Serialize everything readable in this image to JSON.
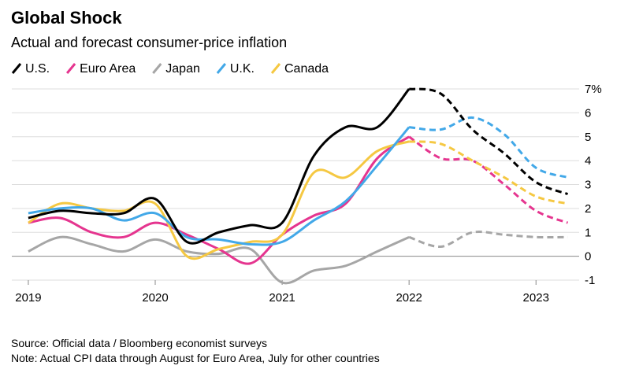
{
  "chart_data": {
    "type": "line",
    "title": "Global Shock",
    "subtitle": "Actual and forecast consumer-price inflation",
    "source": "Source: Official data / Bloomberg economist surveys",
    "note": "Note: Actual CPI data through August for Euro Area, July for other countries",
    "x": [
      2019.0,
      2019.25,
      2019.5,
      2019.75,
      2020.0,
      2020.25,
      2020.5,
      2020.75,
      2021.0,
      2021.25,
      2021.5,
      2021.75,
      2022.0,
      2022.25,
      2022.5,
      2022.75,
      2023.0,
      2023.25
    ],
    "xlim": [
      2018.87,
      2023.34
    ],
    "xticks": [
      2019,
      2020,
      2021,
      2022,
      2023
    ],
    "ylim": [
      -1,
      7
    ],
    "yticks": [
      -1,
      0,
      1,
      2,
      3,
      4,
      5,
      6,
      {
        "value": 7,
        "label": "7%"
      }
    ],
    "grid": true,
    "series": [
      {
        "name": "U.S.",
        "color": "#000000",
        "values": [
          1.6,
          1.9,
          1.8,
          1.8,
          2.4,
          0.6,
          1.0,
          1.3,
          1.4,
          4.2,
          5.4,
          5.4,
          7.0,
          null,
          null,
          null,
          null,
          null
        ],
        "forecast": [
          null,
          null,
          null,
          null,
          null,
          null,
          null,
          null,
          null,
          null,
          null,
          null,
          7.0,
          6.8,
          5.3,
          4.3,
          3.1,
          2.6
        ]
      },
      {
        "name": "Euro Area",
        "color": "#e5358f",
        "values": [
          1.4,
          1.6,
          1.0,
          0.8,
          1.4,
          0.9,
          0.3,
          -0.3,
          0.9,
          1.7,
          2.2,
          4.1,
          5.0,
          null,
          null,
          null,
          null,
          null
        ],
        "forecast": [
          null,
          null,
          null,
          null,
          null,
          null,
          null,
          null,
          null,
          null,
          null,
          null,
          5.0,
          4.1,
          4.0,
          3.0,
          1.9,
          1.4
        ]
      },
      {
        "name": "Japan",
        "color": "#a6a6a6",
        "values": [
          0.2,
          0.8,
          0.5,
          0.2,
          0.7,
          0.2,
          0.1,
          0.3,
          -1.1,
          -0.6,
          -0.4,
          0.2,
          0.8,
          null,
          null,
          null,
          null,
          null
        ],
        "forecast": [
          null,
          null,
          null,
          null,
          null,
          null,
          null,
          null,
          null,
          null,
          null,
          null,
          0.8,
          0.4,
          1.0,
          0.9,
          0.8,
          0.8
        ]
      },
      {
        "name": "U.K.",
        "color": "#42a8e8",
        "values": [
          1.8,
          2.0,
          2.0,
          1.5,
          1.8,
          0.8,
          0.7,
          0.5,
          0.6,
          1.5,
          2.3,
          3.8,
          5.4,
          null,
          null,
          null,
          null,
          null
        ],
        "forecast": [
          null,
          null,
          null,
          null,
          null,
          null,
          null,
          null,
          null,
          null,
          null,
          null,
          5.4,
          5.3,
          5.8,
          5.1,
          3.7,
          3.3
        ]
      },
      {
        "name": "Canada",
        "color": "#f5c842",
        "values": [
          1.4,
          2.2,
          2.0,
          1.9,
          2.2,
          0.0,
          0.3,
          0.6,
          0.9,
          3.5,
          3.3,
          4.4,
          4.8,
          null,
          null,
          null,
          null,
          null
        ],
        "forecast": [
          null,
          null,
          null,
          null,
          null,
          null,
          null,
          null,
          null,
          null,
          null,
          null,
          4.8,
          4.7,
          4.0,
          3.3,
          2.5,
          2.2
        ]
      }
    ]
  }
}
